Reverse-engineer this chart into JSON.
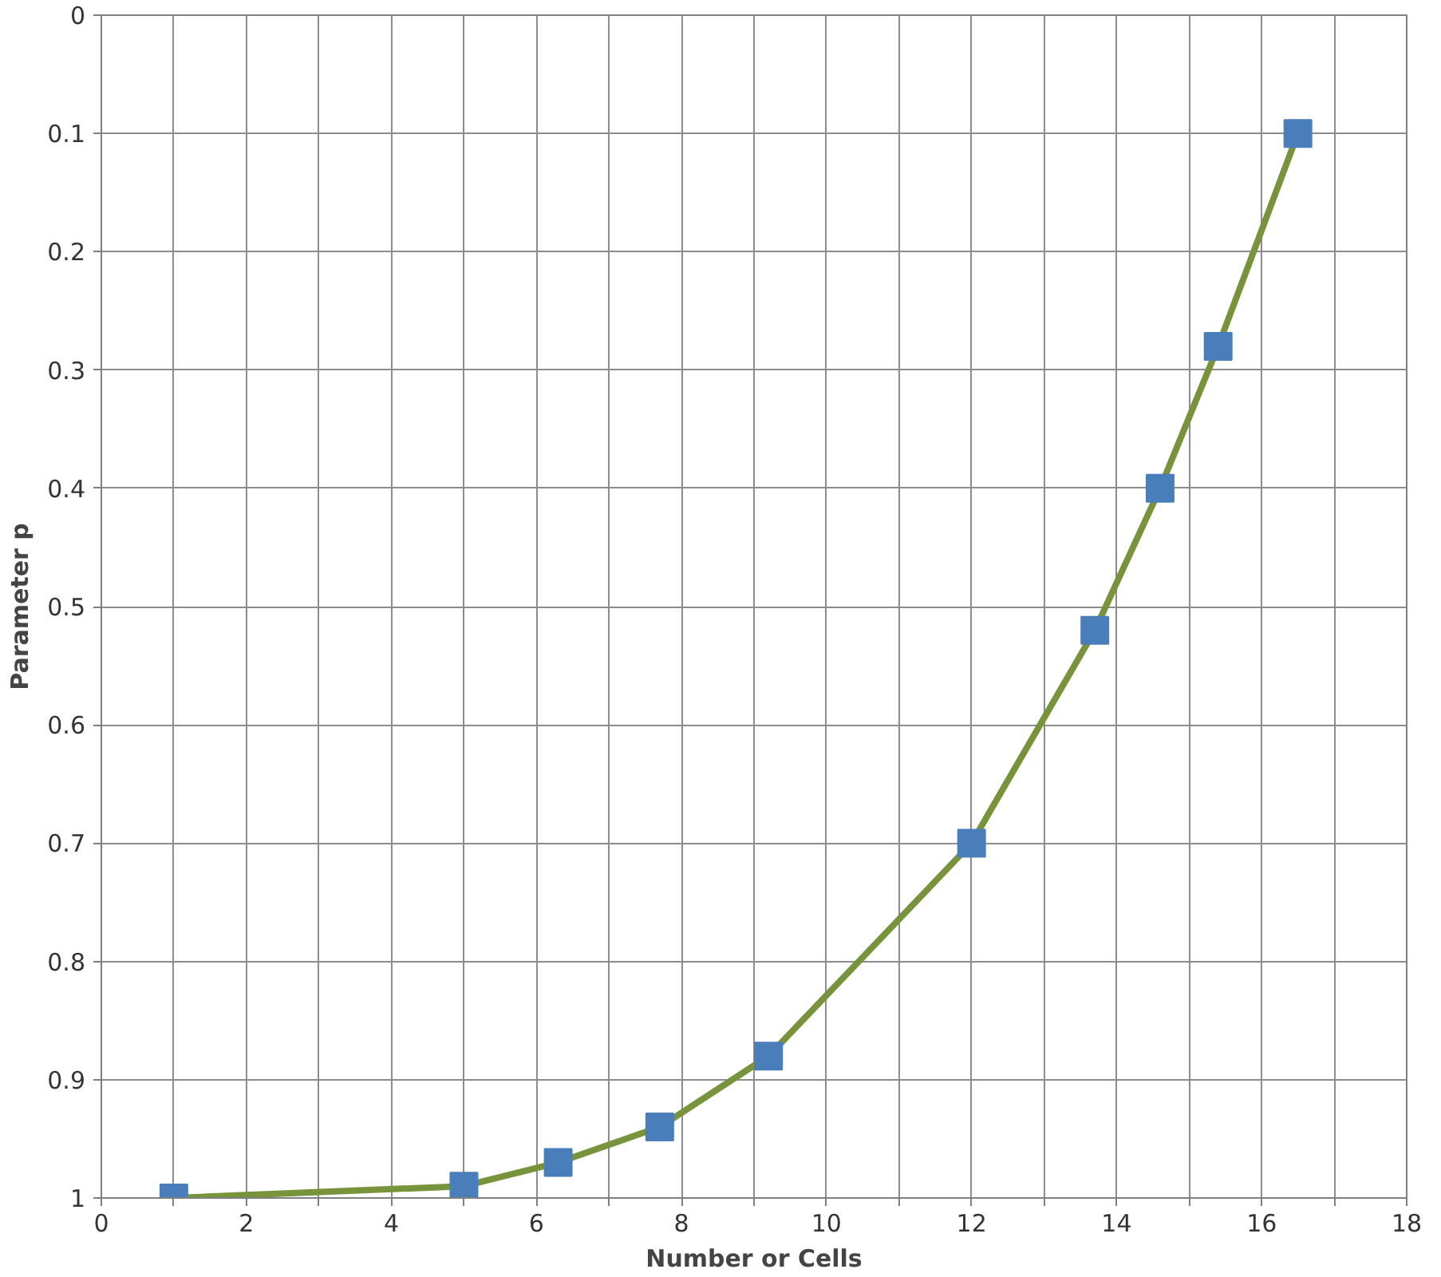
{
  "chart_data": {
    "type": "line",
    "xlabel": "Number or Cells",
    "ylabel": "Parameter p",
    "x": [
      1,
      5,
      6.3,
      7.7,
      9.2,
      12,
      13.7,
      14.6,
      15.4,
      16.5
    ],
    "series": [
      {
        "color": "#77933c",
        "colors": [
          "#4a7ebb",
          "#4a7ebb",
          "#4a7ebb",
          "#4a7ebb",
          "#4a7ebb",
          "#4a7ebb",
          "#4a7ebb",
          "#4a7ebb",
          "#4a7ebb",
          "#4a7ebb"
        ],
        "values": [
          1.0,
          0.99,
          0.97,
          0.94,
          0.88,
          0.7,
          0.52,
          0.4,
          0.28,
          0.1
        ]
      }
    ],
    "marker": "square",
    "line_style": "solid",
    "grid": true,
    "xlim": [
      0,
      18
    ],
    "xticks": [
      0,
      {
        "value": 1,
        "label": null
      },
      2,
      {
        "value": 3,
        "label": null
      },
      4,
      {
        "value": 5,
        "label": null
      },
      6,
      {
        "value": 7,
        "label": null
      },
      8,
      {
        "value": 9,
        "label": null
      },
      10,
      {
        "value": 11,
        "label": null
      },
      12,
      {
        "value": 13,
        "label": null
      },
      14,
      {
        "value": 15,
        "label": null
      },
      16,
      {
        "value": 17,
        "label": null
      },
      18
    ],
    "ylim": [
      1,
      0
    ],
    "yticks": [
      0,
      0.1,
      0.2,
      0.3,
      0.4,
      0.5,
      0.6,
      0.7,
      0.8,
      0.9,
      1
    ]
  }
}
